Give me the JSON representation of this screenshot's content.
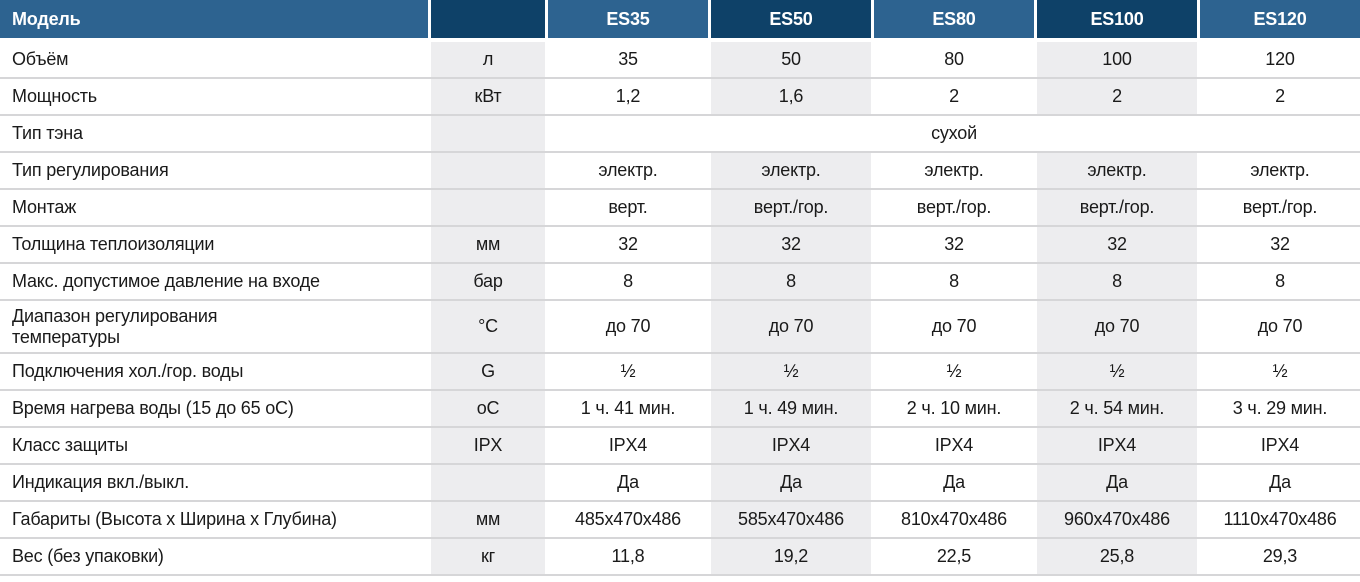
{
  "colors": {
    "header_dark": "#0e4168",
    "header_light": "#2d6390",
    "column_stripe": "#ededef",
    "row_divider": "#d6d6d8",
    "header_text": "#ffffff",
    "body_text": "#1a1a1a"
  },
  "header": {
    "label": "Модель",
    "unit": "",
    "models": [
      "ES35",
      "ES50",
      "ES80",
      "ES100",
      "ES120"
    ]
  },
  "rows": [
    {
      "label": "Объём",
      "unit": "л",
      "values": [
        "35",
        "50",
        "80",
        "100",
        "120"
      ]
    },
    {
      "label": "Мощность",
      "unit": "кВт",
      "values": [
        "1,2",
        "1,6",
        "2",
        "2",
        "2"
      ]
    },
    {
      "label": "Тип тэна",
      "unit": "",
      "merged": "сухой"
    },
    {
      "label": "Тип регулирования",
      "unit": "",
      "values": [
        "электр.",
        "электр.",
        "электр.",
        "электр.",
        "электр."
      ]
    },
    {
      "label": "Монтаж",
      "unit": "",
      "values": [
        "верт.",
        "верт./гор.",
        "верт./гор.",
        "верт./гор.",
        "верт./гор."
      ]
    },
    {
      "label": "Толщина теплоизоляции",
      "unit": "мм",
      "values": [
        "32",
        "32",
        "32",
        "32",
        "32"
      ]
    },
    {
      "label": "Макс. допустимое давление на входе",
      "unit": "бар",
      "values": [
        "8",
        "8",
        "8",
        "8",
        "8"
      ]
    },
    {
      "label": "Диапазон регулирования\nтемпературы",
      "unit": "°C",
      "tall": true,
      "values": [
        "до 70",
        "до 70",
        "до 70",
        "до 70",
        "до 70"
      ]
    },
    {
      "label": "Подключения хол./гор. воды",
      "unit": "G",
      "values": [
        "½",
        "½",
        "½",
        "½",
        "½"
      ]
    },
    {
      "label": "Время нагрева воды (15 до 65 оС)",
      "unit": "оС",
      "values": [
        "1 ч. 41 мин.",
        "1 ч. 49 мин.",
        "2 ч. 10 мин.",
        "2 ч. 54 мин.",
        "3 ч. 29 мин."
      ]
    },
    {
      "label": "Класс защиты",
      "unit": "IPX",
      "values": [
        "IPX4",
        "IPX4",
        "IPX4",
        "IPX4",
        "IPX4"
      ]
    },
    {
      "label": "Индикация вкл./выкл.",
      "unit": "",
      "values": [
        "Да",
        "Да",
        "Да",
        "Да",
        "Да"
      ]
    },
    {
      "label": "Габариты (Высота х Ширина х Глубина)",
      "unit": "мм",
      "values": [
        "485х470х486",
        "585х470х486",
        "810х470х486",
        "960х470х486",
        "1110х470х486"
      ]
    },
    {
      "label": "Вес (без упаковки)",
      "unit": "кг",
      "values": [
        "11,8",
        "19,2",
        "22,5",
        "25,8",
        "29,3"
      ]
    }
  ]
}
